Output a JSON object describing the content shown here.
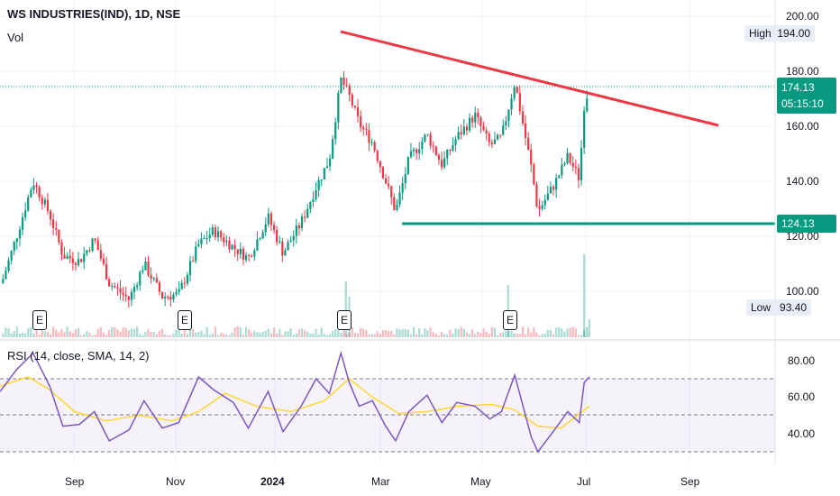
{
  "header": {
    "title": "WS INDUSTRIES(IND), 1D, NSE",
    "volume_label": "Vol"
  },
  "price_axis": {
    "ticks": [
      "200.00",
      "180.00",
      "160.00",
      "140.00",
      "120.00",
      "100.00"
    ]
  },
  "stats": {
    "high_label": "High",
    "high_value": "194.00",
    "low_label": "Low",
    "low_value": "93.40"
  },
  "price_tags": {
    "current": "174.13",
    "timer": "05:15:10",
    "support": "124.13"
  },
  "earnings_marker": "E",
  "rsi": {
    "label": "RSI (14, close, SMA, 14, 2)",
    "ticks": [
      "80.00",
      "60.00",
      "40.00"
    ]
  },
  "time_axis": {
    "labels": [
      "Sep",
      "Nov",
      "2024",
      "Mar",
      "May",
      "Jul",
      "Sep"
    ]
  },
  "colors": {
    "up": "#089981",
    "down": "#f23645",
    "resistance": "#f23645",
    "support": "#089981",
    "rsi": "#7e57c2",
    "rsi_ma": "#fdd835"
  },
  "chart_data": [
    {
      "type": "line",
      "title": "WS INDUSTRIES(IND), 1D, NSE",
      "x_range": [
        "2023-07-18",
        "2024-09-30"
      ],
      "ylim": [
        93,
        202
      ],
      "y_ticks": [
        100,
        120,
        140,
        160,
        180,
        200
      ],
      "series": [
        {
          "dates": [
            "2023-07-19",
            "2023-07-28",
            "2023-08-07",
            "2023-08-17",
            "2023-08-25",
            "2023-09-04",
            "2023-09-13",
            "2023-09-22",
            "2023-10-04",
            "2023-10-13",
            "2023-10-24",
            "2023-11-03",
            "2023-11-15",
            "2023-11-24",
            "2023-12-06",
            "2023-12-15",
            "2023-12-27",
            "2024-01-05",
            "2024-01-16",
            "2024-01-25",
            "2024-02-02",
            "2024-02-09",
            "2024-02-14",
            "2024-02-20",
            "2024-02-28",
            "2024-03-07",
            "2024-03-13",
            "2024-03-21",
            "2024-04-01",
            "2024-04-10",
            "2024-04-19",
            "2024-04-30",
            "2024-05-09",
            "2024-05-16",
            "2024-05-24",
            "2024-06-03",
            "2024-06-07",
            "2024-06-17",
            "2024-06-25",
            "2024-07-02",
            "2024-07-05",
            "2024-07-08"
          ],
          "close": [
            103,
            120,
            140,
            128,
            113,
            111,
            119,
            103,
            97,
            110,
            98,
            99,
            117,
            122,
            116,
            112,
            127,
            114,
            125,
            138,
            148,
            177,
            171,
            161,
            154,
            140,
            129,
            148,
            157,
            146,
            156,
            164,
            153,
            156,
            176,
            145,
            129,
            139,
            149,
            141,
            168,
            174.13
          ]
        }
      ],
      "annotations": {
        "resistance": {
          "from": [
            "2024-02-13",
            194
          ],
          "to": [
            "2024-09-19",
            161
          ]
        },
        "support": 124.13,
        "current_price": 174.13,
        "earnings_dates": [
          "2023-08-16",
          "2023-11-03",
          "2024-02-12",
          "2024-05-20"
        ]
      },
      "grid": true,
      "legend": "none"
    },
    {
      "type": "line",
      "title": "RSI (14, close, SMA, 14, 2)",
      "ylim": [
        28,
        86
      ],
      "y_ticks": [
        40,
        60,
        80
      ],
      "bands": [
        30,
        50,
        70
      ],
      "series": [
        {
          "name": "RSI",
          "dates": [
            "2023-07-18",
            "2023-07-28",
            "2023-08-07",
            "2023-08-17",
            "2023-08-25",
            "2023-09-04",
            "2023-09-13",
            "2023-09-22",
            "2023-10-04",
            "2023-10-13",
            "2023-10-24",
            "2023-11-03",
            "2023-11-15",
            "2023-11-24",
            "2023-12-06",
            "2023-12-15",
            "2023-12-27",
            "2024-01-05",
            "2024-01-16",
            "2024-01-25",
            "2024-02-02",
            "2024-02-09",
            "2024-02-14",
            "2024-02-20",
            "2024-02-28",
            "2024-03-07",
            "2024-03-13",
            "2024-03-21",
            "2024-04-01",
            "2024-04-10",
            "2024-04-19",
            "2024-04-30",
            "2024-05-09",
            "2024-05-16",
            "2024-05-24",
            "2024-06-03",
            "2024-06-07",
            "2024-06-17",
            "2024-06-25",
            "2024-07-02",
            "2024-07-05",
            "2024-07-08"
          ],
          "values": [
            63,
            75,
            84,
            66,
            44,
            45,
            52,
            36,
            42,
            58,
            43,
            46,
            71,
            64,
            57,
            43,
            63,
            41,
            55,
            70,
            62,
            84,
            68,
            55,
            58,
            44,
            36,
            52,
            61,
            46,
            57,
            55,
            48,
            52,
            72,
            38,
            30,
            42,
            52,
            46,
            68,
            71
          ]
        },
        {
          "name": "RSI-based MA",
          "dates": [
            "2023-07-18",
            "2023-08-04",
            "2023-08-17",
            "2023-09-01",
            "2023-09-20",
            "2023-10-10",
            "2023-10-30",
            "2023-11-15",
            "2023-12-01",
            "2023-12-20",
            "2024-01-10",
            "2024-01-30",
            "2024-02-14",
            "2024-02-28",
            "2024-03-15",
            "2024-04-01",
            "2024-04-20",
            "2024-05-10",
            "2024-05-24",
            "2024-06-07",
            "2024-06-21",
            "2024-07-08"
          ],
          "values": [
            66,
            71,
            64,
            52,
            47,
            50,
            47,
            52,
            62,
            55,
            52,
            58,
            70,
            60,
            51,
            52,
            55,
            56,
            53,
            44,
            43,
            55
          ]
        }
      ]
    }
  ]
}
